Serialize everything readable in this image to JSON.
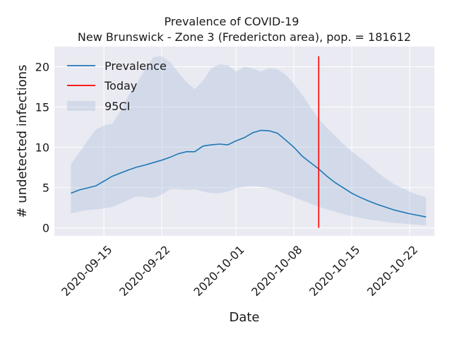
{
  "chart_data": {
    "type": "line",
    "title": "Prevalence of COVID-19",
    "subtitle": "New Brunswick - Zone 3 (Fredericton area), pop. = 181612",
    "xlabel": "Date",
    "ylabel": "# undetected infections",
    "x_start": "2020-09-09",
    "x_end": "2020-10-25",
    "ylim": [
      -1,
      22.5
    ],
    "yticks": [
      0,
      5,
      10,
      15,
      20
    ],
    "xticks": [
      "2020-09-15",
      "2020-09-22",
      "2020-10-01",
      "2020-10-08",
      "2020-10-15",
      "2020-10-22"
    ],
    "grid": true,
    "legend_position": "top-left",
    "series": [
      {
        "name": "Prevalence",
        "color": "#1f77b4",
        "points": [
          [
            "2020-09-11",
            4.3
          ],
          [
            "2020-09-12",
            4.7
          ],
          [
            "2020-09-13",
            4.95
          ],
          [
            "2020-09-14",
            5.2
          ],
          [
            "2020-09-15",
            5.8
          ],
          [
            "2020-09-16",
            6.4
          ],
          [
            "2020-09-17",
            6.8
          ],
          [
            "2020-09-18",
            7.2
          ],
          [
            "2020-09-19",
            7.55
          ],
          [
            "2020-09-20",
            7.8
          ],
          [
            "2020-09-21",
            8.1
          ],
          [
            "2020-09-22",
            8.4
          ],
          [
            "2020-09-23",
            8.75
          ],
          [
            "2020-09-24",
            9.2
          ],
          [
            "2020-09-25",
            9.45
          ],
          [
            "2020-09-26",
            9.45
          ],
          [
            "2020-09-27",
            10.15
          ],
          [
            "2020-09-28",
            10.3
          ],
          [
            "2020-09-29",
            10.4
          ],
          [
            "2020-09-30",
            10.3
          ],
          [
            "2020-10-01",
            10.8
          ],
          [
            "2020-10-02",
            11.2
          ],
          [
            "2020-10-03",
            11.8
          ],
          [
            "2020-10-04",
            12.1
          ],
          [
            "2020-10-05",
            12.05
          ],
          [
            "2020-10-06",
            11.75
          ],
          [
            "2020-10-07",
            10.9
          ],
          [
            "2020-10-08",
            10.0
          ],
          [
            "2020-10-09",
            8.9
          ],
          [
            "2020-10-10",
            8.1
          ],
          [
            "2020-10-11",
            7.3
          ],
          [
            "2020-10-12",
            6.4
          ],
          [
            "2020-10-13",
            5.6
          ],
          [
            "2020-10-14",
            4.95
          ],
          [
            "2020-10-15",
            4.3
          ],
          [
            "2020-10-16",
            3.8
          ],
          [
            "2020-10-17",
            3.35
          ],
          [
            "2020-10-18",
            2.95
          ],
          [
            "2020-10-19",
            2.6
          ],
          [
            "2020-10-20",
            2.25
          ],
          [
            "2020-10-21",
            2.0
          ],
          [
            "2020-10-22",
            1.75
          ],
          [
            "2020-10-23",
            1.55
          ],
          [
            "2020-10-24",
            1.35
          ]
        ]
      },
      {
        "name": "Today",
        "color": "#ff0000",
        "date": "2020-10-11",
        "y_range": [
          0,
          21.3
        ]
      },
      {
        "name": "95CI",
        "color": "#b0c4de",
        "points": [
          [
            "2020-09-11",
            1.8,
            7.9
          ],
          [
            "2020-09-12",
            2.0,
            9.3
          ],
          [
            "2020-09-13",
            2.2,
            10.8
          ],
          [
            "2020-09-14",
            2.3,
            12.2
          ],
          [
            "2020-09-15",
            2.4,
            12.7
          ],
          [
            "2020-09-16",
            2.6,
            12.9
          ],
          [
            "2020-09-17",
            3.0,
            14.5
          ],
          [
            "2020-09-18",
            3.5,
            16.5
          ],
          [
            "2020-09-19",
            3.9,
            18.0
          ],
          [
            "2020-09-20",
            3.8,
            19.7
          ],
          [
            "2020-09-21",
            3.7,
            21.2
          ],
          [
            "2020-09-22",
            4.1,
            21.3
          ],
          [
            "2020-09-23",
            4.8,
            20.6
          ],
          [
            "2020-09-24",
            4.8,
            19.3
          ],
          [
            "2020-09-25",
            4.7,
            18.1
          ],
          [
            "2020-09-26",
            4.8,
            17.2
          ],
          [
            "2020-09-27",
            4.5,
            18.3
          ],
          [
            "2020-09-28",
            4.3,
            19.8
          ],
          [
            "2020-09-29",
            4.3,
            20.3
          ],
          [
            "2020-09-30",
            4.5,
            20.2
          ],
          [
            "2020-10-01",
            4.9,
            19.4
          ],
          [
            "2020-10-02",
            5.1,
            20.0
          ],
          [
            "2020-10-03",
            5.2,
            19.8
          ],
          [
            "2020-10-04",
            5.1,
            19.4
          ],
          [
            "2020-10-05",
            4.9,
            19.8
          ],
          [
            "2020-10-06",
            4.6,
            19.7
          ],
          [
            "2020-10-07",
            4.2,
            19.0
          ],
          [
            "2020-10-08",
            3.8,
            17.9
          ],
          [
            "2020-10-09",
            3.4,
            16.5
          ],
          [
            "2020-10-10",
            3.0,
            15.0
          ],
          [
            "2020-10-11",
            2.6,
            13.5
          ],
          [
            "2020-10-12",
            2.3,
            12.4
          ],
          [
            "2020-10-13",
            2.0,
            11.4
          ],
          [
            "2020-10-14",
            1.7,
            10.4
          ],
          [
            "2020-10-15",
            1.45,
            9.5
          ],
          [
            "2020-10-16",
            1.25,
            8.7
          ],
          [
            "2020-10-17",
            1.05,
            7.9
          ],
          [
            "2020-10-18",
            0.9,
            7.0
          ],
          [
            "2020-10-19",
            0.75,
            6.2
          ],
          [
            "2020-10-20",
            0.65,
            5.5
          ],
          [
            "2020-10-21",
            0.55,
            5.0
          ],
          [
            "2020-10-22",
            0.45,
            4.5
          ],
          [
            "2020-10-23",
            0.38,
            4.1
          ],
          [
            "2020-10-24",
            0.3,
            3.8
          ]
        ]
      }
    ],
    "colors": {
      "plot_background": "#eaeaf2",
      "grid": "#ffffff"
    }
  }
}
